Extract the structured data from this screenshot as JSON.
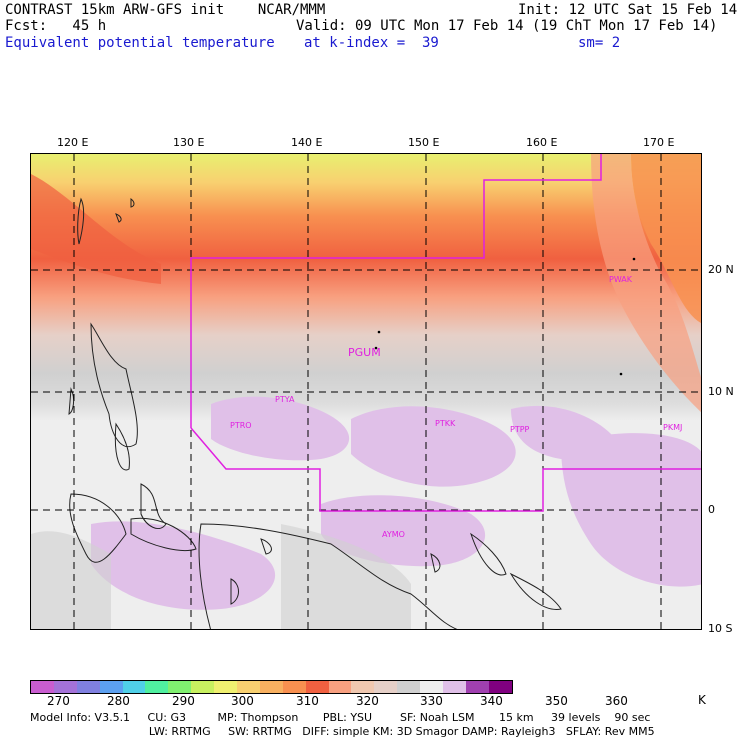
{
  "header": {
    "line1_left": "CONTRAST 15km ARW-GFS init    NCAR/MMM",
    "line1_right": "Init: 12 UTC Sat 15 Feb 14",
    "line2_left": "Fcst:   45 h",
    "line2_right": "Valid: 09 UTC Mon 17 Feb 14 (19 ChT Mon 17 Feb 14)",
    "line3_left": "Equivalent potential temperature",
    "line3_mid": "at k-index =  39",
    "line3_right": "sm= 2"
  },
  "axes": {
    "lon_labels": [
      "120 E",
      "130 E",
      "140 E",
      "150 E",
      "160 E",
      "170 E"
    ],
    "lat_labels": [
      "20 N",
      "10 N",
      "0",
      "10 S"
    ]
  },
  "stations": [
    "PWAK",
    "PGUM",
    "PTYA",
    "PTRO",
    "PTKK",
    "PTPP",
    "PKMJ",
    "AYMO"
  ],
  "colorbar": {
    "colors": [
      "#c95dd0",
      "#a472d8",
      "#8080e0",
      "#5ca0f0",
      "#50d0e8",
      "#50f0a0",
      "#80f070",
      "#c8f060",
      "#f0f070",
      "#f8d070",
      "#f8b060",
      "#f89050",
      "#f06040",
      "#f8a080",
      "#f0c8b0",
      "#e6d0c8",
      "#d0d0d0",
      "#eeeeee",
      "#e0c0e8",
      "#a040b0",
      "#800080"
    ],
    "labels": [
      "270",
      "280",
      "290",
      "300",
      "310",
      "320",
      "330",
      "340",
      "350",
      "360",
      "K"
    ]
  },
  "footer": {
    "line1": "Model Info: V3.5.1     CU: G3         MP: Thompson       PBL: YSU        SF: Noah LSM       15 km     39 levels    90 sec",
    "line2": "                                  LW: RRTMG     SW: RRTMG   DIFF: simple KM: 3D Smagor DAMP: Rayleigh3   SFLAY: Rev MM5"
  }
}
